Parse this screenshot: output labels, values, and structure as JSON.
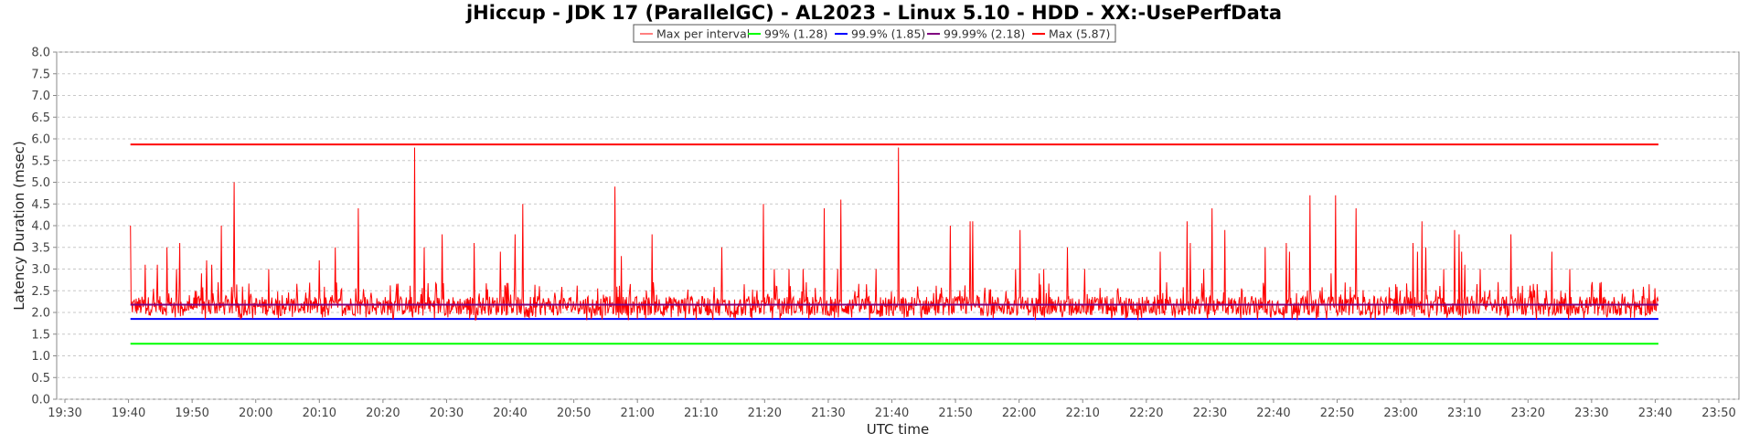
{
  "chart_data": {
    "type": "line",
    "title": "jHiccup - JDK 17 (ParallelGC) - AL2023 - Linux 5.10 - HDD - XX:-UsePerfData",
    "xlabel": "UTC time",
    "ylabel": "Latency Duration (msec)",
    "ylim": [
      0,
      8
    ],
    "y_ticks": [
      "0.0",
      "0.5",
      "1.0",
      "1.5",
      "2.0",
      "2.5",
      "3.0",
      "3.5",
      "4.0",
      "4.5",
      "5.0",
      "5.5",
      "6.0",
      "6.5",
      "7.0",
      "7.5",
      "8.0"
    ],
    "x_ticks": [
      "19:30",
      "19:40",
      "19:50",
      "20:00",
      "20:10",
      "20:20",
      "20:30",
      "20:40",
      "20:50",
      "21:00",
      "21:10",
      "21:20",
      "21:30",
      "21:40",
      "21:50",
      "22:00",
      "22:10",
      "22:20",
      "22:30",
      "22:40",
      "22:50",
      "23:00",
      "23:10",
      "23:20",
      "23:30",
      "23:40",
      "23:50"
    ],
    "x_range_minutes": [
      0,
      260
    ],
    "grid": true,
    "legend_position": "top-center",
    "colors": {
      "max_per_interval": "#ff0000",
      "p99": "#00ff00",
      "p999": "#0000ff",
      "p9999": "#800080",
      "max": "#ff0000",
      "grid": "#c8c8c8"
    },
    "series": [
      {
        "name": "Max per interval",
        "base_level": 2.15,
        "x_start_minutes": 10.3,
        "x_end_minutes": 250.5,
        "peaks": [
          [
            10.3,
            4.0
          ],
          [
            12.6,
            3.1
          ],
          [
            14.5,
            3.1
          ],
          [
            16.0,
            3.5
          ],
          [
            17.5,
            3.0
          ],
          [
            18.0,
            3.6
          ],
          [
            21.5,
            2.9
          ],
          [
            22.3,
            3.2
          ],
          [
            23.1,
            3.1
          ],
          [
            24.6,
            4.0
          ],
          [
            26.6,
            5.0
          ],
          [
            32.0,
            3.0
          ],
          [
            40.0,
            3.2
          ],
          [
            42.5,
            3.5
          ],
          [
            46.1,
            4.4
          ],
          [
            55.0,
            5.8
          ],
          [
            56.5,
            3.5
          ],
          [
            59.3,
            3.8
          ],
          [
            64.3,
            3.6
          ],
          [
            68.5,
            3.4
          ],
          [
            70.8,
            3.8
          ],
          [
            72.0,
            4.5
          ],
          [
            86.5,
            4.9
          ],
          [
            87.5,
            3.3
          ],
          [
            92.3,
            3.8
          ],
          [
            103.3,
            3.5
          ],
          [
            109.8,
            4.5
          ],
          [
            111.5,
            3.0
          ],
          [
            113.8,
            3.0
          ],
          [
            116.0,
            3.0
          ],
          [
            119.4,
            4.4
          ],
          [
            121.5,
            3.0
          ],
          [
            122.0,
            4.6
          ],
          [
            127.5,
            3.0
          ],
          [
            131.0,
            5.8
          ],
          [
            139.2,
            4.0
          ],
          [
            142.3,
            4.1
          ],
          [
            142.7,
            4.1
          ],
          [
            149.4,
            3.0
          ],
          [
            150.1,
            3.9
          ],
          [
            153.2,
            2.9
          ],
          [
            153.9,
            3.0
          ],
          [
            157.6,
            3.5
          ],
          [
            160.3,
            3.0
          ],
          [
            172.2,
            3.4
          ],
          [
            176.4,
            4.1
          ],
          [
            176.9,
            3.6
          ],
          [
            179.0,
            3.0
          ],
          [
            180.3,
            4.4
          ],
          [
            182.3,
            3.9
          ],
          [
            188.7,
            3.5
          ],
          [
            192.0,
            3.6
          ],
          [
            192.5,
            3.4
          ],
          [
            195.7,
            4.7
          ],
          [
            199.0,
            2.9
          ],
          [
            199.7,
            4.7
          ],
          [
            203.0,
            4.4
          ],
          [
            211.9,
            3.6
          ],
          [
            212.6,
            3.4
          ],
          [
            213.3,
            4.1
          ],
          [
            213.9,
            3.5
          ],
          [
            216.7,
            3.0
          ],
          [
            218.5,
            3.9
          ],
          [
            219.2,
            3.8
          ],
          [
            219.6,
            3.4
          ],
          [
            220.1,
            3.1
          ],
          [
            222.5,
            3.0
          ],
          [
            227.3,
            3.8
          ],
          [
            233.8,
            3.4
          ],
          [
            236.6,
            3.0
          ],
          [
            240.1,
            2.7
          ]
        ]
      },
      {
        "name": "99% (1.28)",
        "value": 1.28
      },
      {
        "name": "99.9% (1.85)",
        "value": 1.85
      },
      {
        "name": "99.99% (2.18)",
        "value": 2.18
      },
      {
        "name": "Max (5.87)",
        "value": 5.87
      }
    ]
  }
}
